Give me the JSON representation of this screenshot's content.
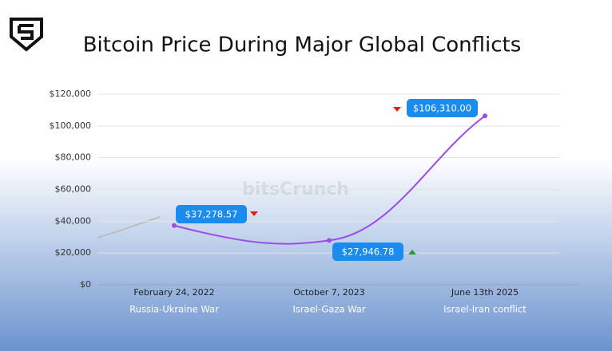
{
  "chart_data": {
    "type": "line",
    "title": "Bitcoin Price During Major Global Conflicts",
    "watermark": "bitsCrunch",
    "categories": [
      "February 24, 2022",
      "October 7, 2023",
      "June 13th 2025"
    ],
    "conflicts": [
      "Russia-Ukraine War",
      "Israel-Gaza War",
      "Israel-Iran conflict"
    ],
    "series": [
      {
        "name": "Bitcoin Price",
        "color": "#9b4dea",
        "values": [
          37278.57,
          27946.78,
          106310.0
        ],
        "value_labels": [
          "$37,278.57",
          "$27,946.78",
          "$106,310.00"
        ]
      }
    ],
    "ylim": [
      0,
      120000
    ],
    "yticks": [
      {
        "value": 0,
        "label": "$0"
      },
      {
        "value": 20000,
        "label": "$20,000"
      },
      {
        "value": 40000,
        "label": "$40,000"
      },
      {
        "value": 60000,
        "label": "$60,000"
      },
      {
        "value": 80000,
        "label": "$80,000"
      },
      {
        "value": 100000,
        "label": "$100,000"
      },
      {
        "value": 120000,
        "label": "$120,000"
      }
    ],
    "grid": true,
    "label_color": "#1a8cf0"
  }
}
